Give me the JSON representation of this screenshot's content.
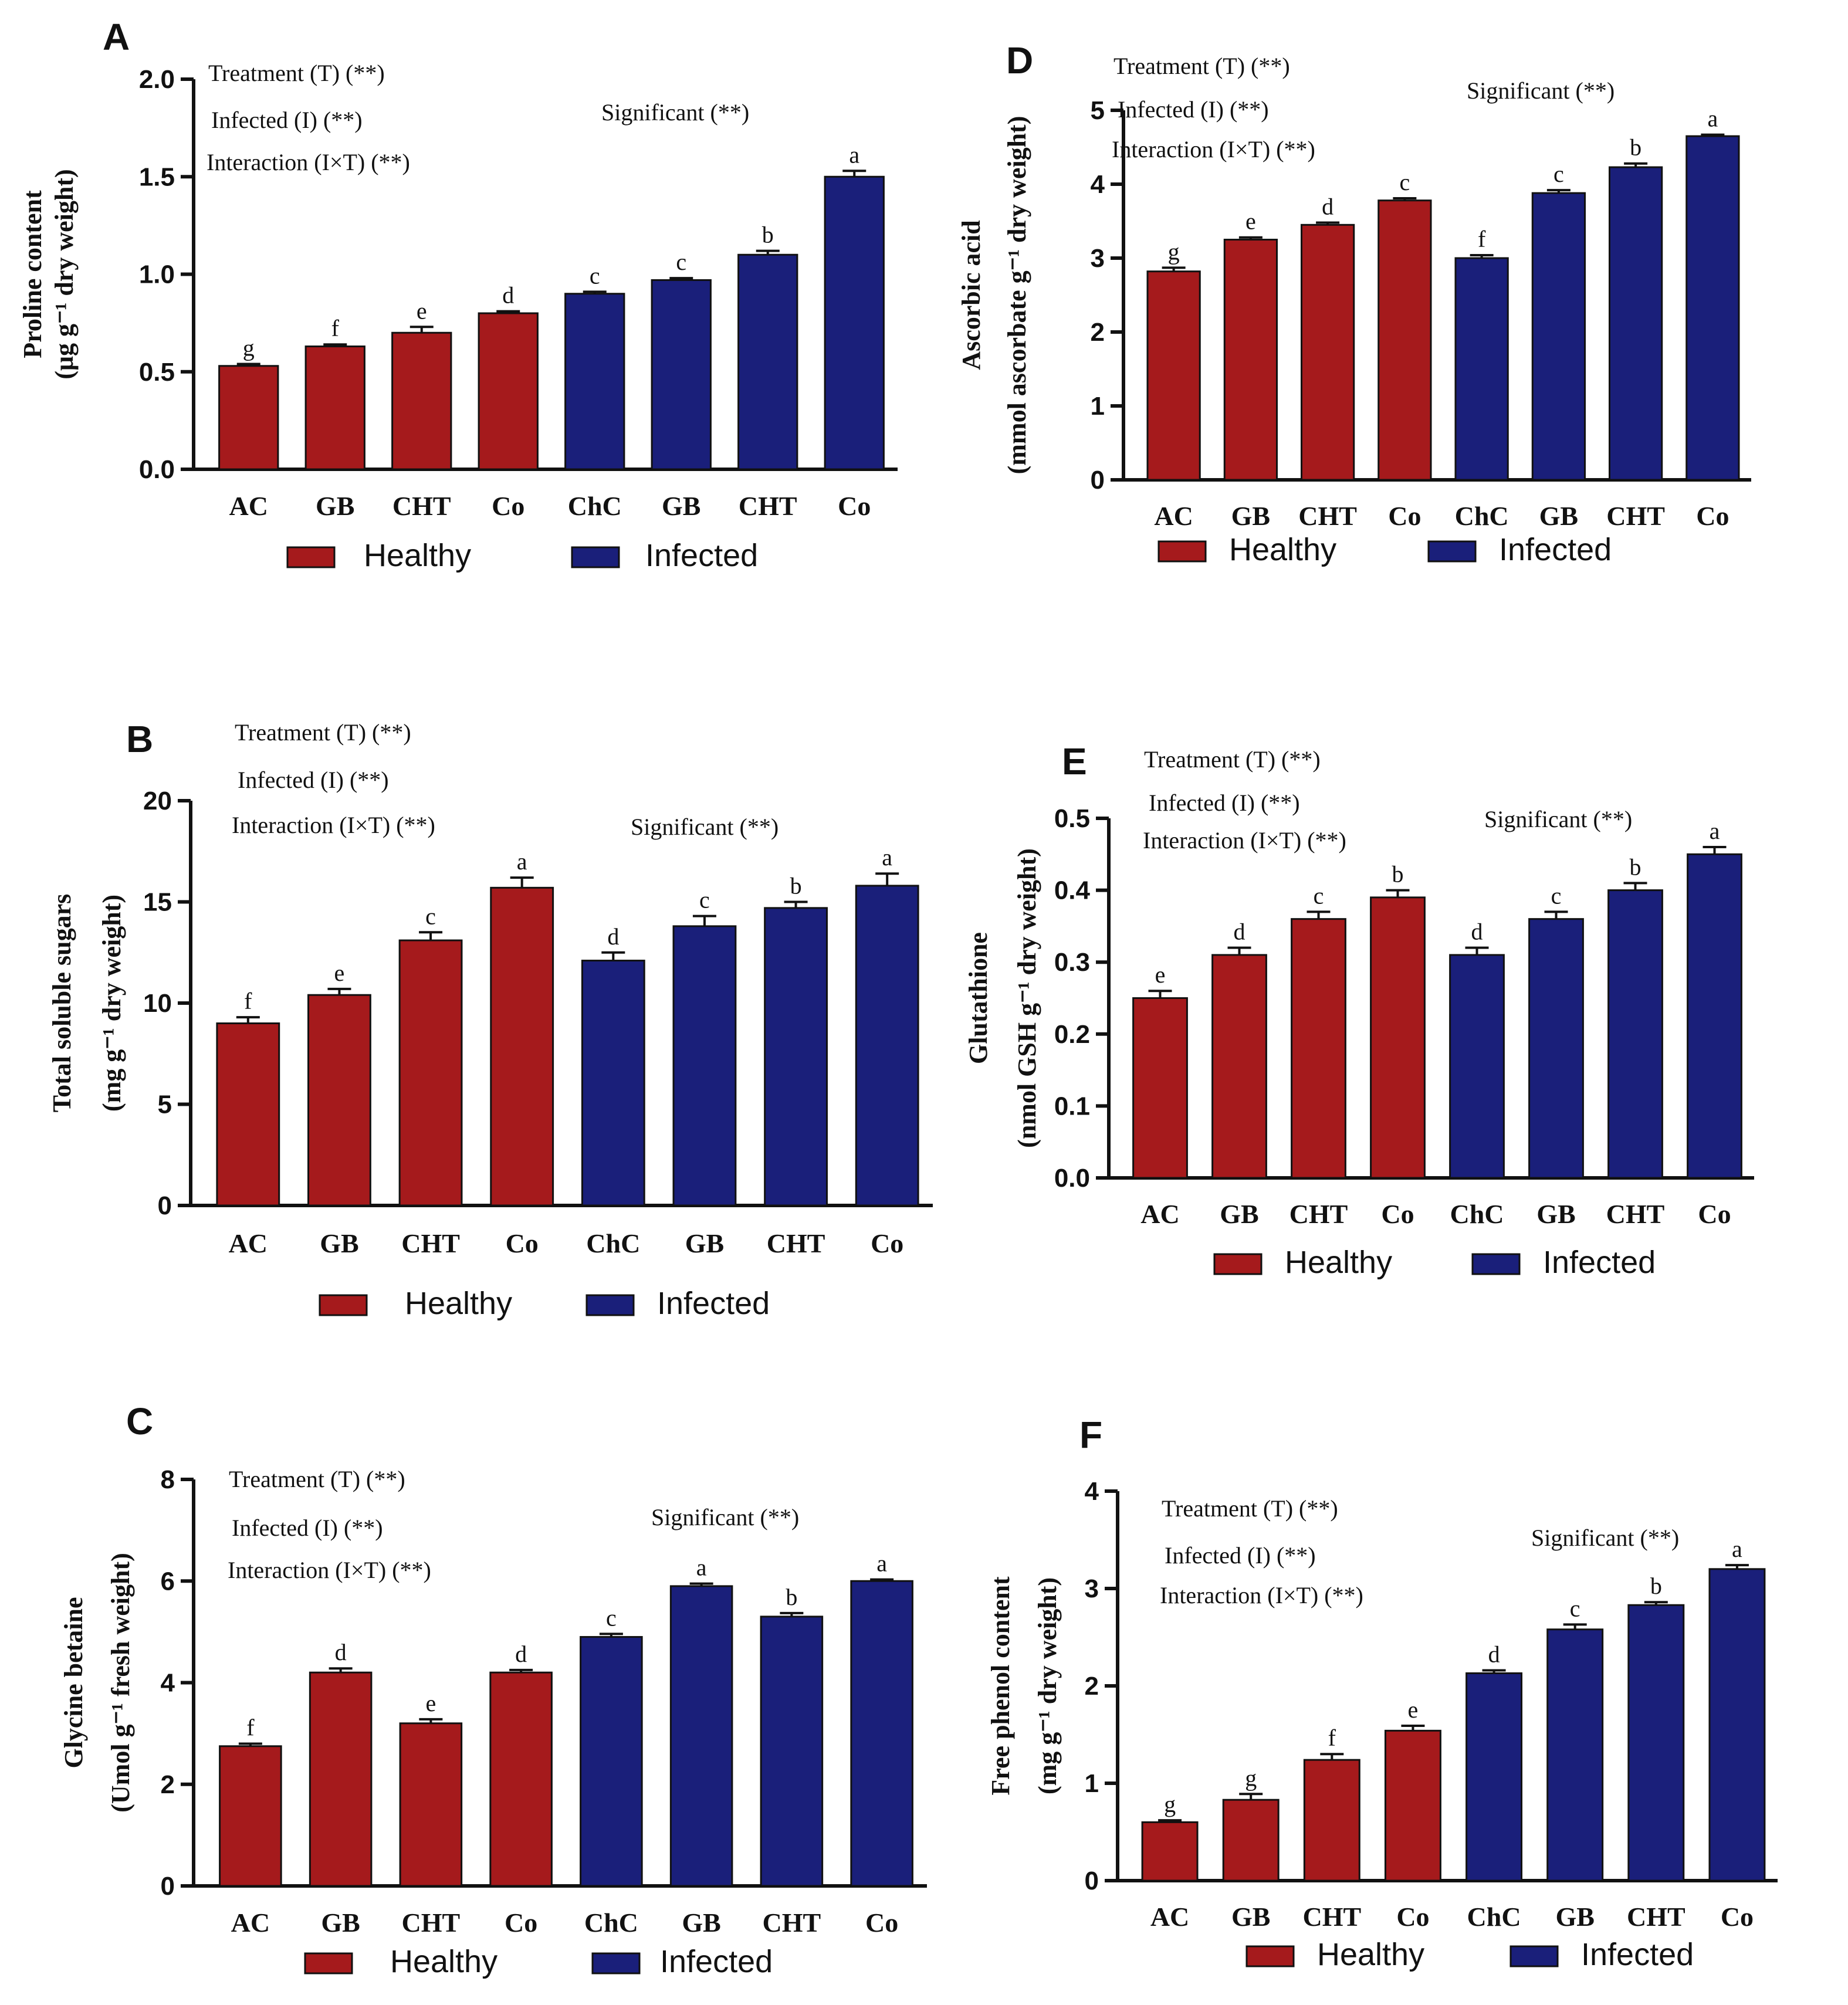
{
  "colors": {
    "healthy": "#a51a1c",
    "infected": "#1a1f7a"
  },
  "legend": {
    "healthy": "Healthy",
    "infected": "Infected"
  },
  "chart_data": [
    {
      "panel": "A",
      "type": "bar",
      "categories": [
        "AC",
        "GB",
        "CHT",
        "Co",
        "ChC",
        "GB",
        "CHT",
        "Co"
      ],
      "groups": [
        "healthy",
        "healthy",
        "healthy",
        "healthy",
        "infected",
        "infected",
        "infected",
        "infected"
      ],
      "values": [
        0.53,
        0.63,
        0.7,
        0.8,
        0.9,
        0.97,
        1.1,
        1.5
      ],
      "errors": [
        0.01,
        0.01,
        0.03,
        0.01,
        0.01,
        0.01,
        0.02,
        0.03
      ],
      "letters": [
        "g",
        "f",
        "e",
        "d",
        "c",
        "c",
        "b",
        "a"
      ],
      "ylabel": [
        "Proline content",
        "(μg g⁻¹ dry weight)"
      ],
      "ylim": [
        0,
        2.0
      ],
      "yticks": [
        "0.0",
        "0.5",
        "1.0",
        "1.5",
        "2.0"
      ],
      "annotations": [
        "Treatment (T) (**)",
        "Infected (I) (**)",
        "Interaction (I×T) (**)"
      ],
      "significance": "Significant (**)"
    },
    {
      "panel": "B",
      "type": "bar",
      "categories": [
        "AC",
        "GB",
        "CHT",
        "Co",
        "ChC",
        "GB",
        "CHT",
        "Co"
      ],
      "groups": [
        "healthy",
        "healthy",
        "healthy",
        "healthy",
        "infected",
        "infected",
        "infected",
        "infected"
      ],
      "values": [
        9.0,
        10.4,
        13.1,
        15.7,
        12.1,
        13.8,
        14.7,
        15.8
      ],
      "errors": [
        0.3,
        0.3,
        0.4,
        0.5,
        0.4,
        0.5,
        0.3,
        0.6
      ],
      "letters": [
        "f",
        "e",
        "c",
        "a",
        "d",
        "c",
        "b",
        "a"
      ],
      "ylabel": [
        "Total soluble sugars",
        "(mg g⁻¹ dry weight)"
      ],
      "ylim": [
        0,
        20
      ],
      "yticks": [
        "0",
        "5",
        "10",
        "15",
        "20"
      ],
      "annotations": [
        "Treatment (T) (**)",
        "Infected (I) (**)",
        "Interaction (I×T) (**)"
      ],
      "significance": "Significant (**)"
    },
    {
      "panel": "C",
      "type": "bar",
      "categories": [
        "AC",
        "GB",
        "CHT",
        "Co",
        "ChC",
        "GB",
        "CHT",
        "Co"
      ],
      "groups": [
        "healthy",
        "healthy",
        "healthy",
        "healthy",
        "infected",
        "infected",
        "infected",
        "infected"
      ],
      "values": [
        2.75,
        4.2,
        3.2,
        4.2,
        4.9,
        5.9,
        5.3,
        6.0
      ],
      "errors": [
        0.05,
        0.08,
        0.08,
        0.05,
        0.06,
        0.05,
        0.07,
        0.03
      ],
      "letters": [
        "f",
        "d",
        "e",
        "d",
        "c",
        "a",
        "b",
        "a"
      ],
      "ylabel": [
        "Glycine betaine",
        "(Umol g⁻¹ fresh weight)"
      ],
      "ylim": [
        0,
        8
      ],
      "yticks": [
        "0",
        "2",
        "4",
        "6",
        "8"
      ],
      "annotations": [
        "Treatment (T) (**)",
        "Infected (I) (**)",
        "Interaction (I×T) (**)"
      ],
      "significance": "Significant (**)"
    },
    {
      "panel": "D",
      "type": "bar",
      "categories": [
        "AC",
        "GB",
        "CHT",
        "Co",
        "ChC",
        "GB",
        "CHT",
        "Co"
      ],
      "groups": [
        "healthy",
        "healthy",
        "healthy",
        "healthy",
        "infected",
        "infected",
        "infected",
        "infected"
      ],
      "values": [
        2.82,
        3.25,
        3.45,
        3.78,
        3.0,
        3.88,
        4.23,
        4.65
      ],
      "errors": [
        0.05,
        0.03,
        0.03,
        0.03,
        0.04,
        0.04,
        0.05,
        0.02
      ],
      "letters": [
        "g",
        "e",
        "d",
        "c",
        "f",
        "c",
        "b",
        "a"
      ],
      "ylabel": [
        "Ascorbic acid",
        "(mmol ascorbate g⁻¹ dry weight)"
      ],
      "ylim": [
        0,
        5
      ],
      "yticks": [
        "0",
        "1",
        "2",
        "3",
        "4",
        "5"
      ],
      "annotations": [
        "Treatment (T) (**)",
        "Infected (I) (**)",
        "Interaction (I×T) (**)"
      ],
      "significance": "Significant (**)"
    },
    {
      "panel": "E",
      "type": "bar",
      "categories": [
        "AC",
        "GB",
        "CHT",
        "Co",
        "ChC",
        "GB",
        "CHT",
        "Co"
      ],
      "groups": [
        "healthy",
        "healthy",
        "healthy",
        "healthy",
        "infected",
        "infected",
        "infected",
        "infected"
      ],
      "values": [
        0.25,
        0.31,
        0.36,
        0.39,
        0.31,
        0.36,
        0.4,
        0.45
      ],
      "errors": [
        0.01,
        0.01,
        0.01,
        0.01,
        0.01,
        0.01,
        0.01,
        0.01
      ],
      "letters": [
        "e",
        "d",
        "c",
        "b",
        "d",
        "c",
        "b",
        "a"
      ],
      "ylabel": [
        "Glutathione",
        "(nmol GSH g⁻¹ dry weight)"
      ],
      "ylim": [
        0,
        0.5
      ],
      "yticks": [
        "0.0",
        "0.1",
        "0.2",
        "0.3",
        "0.4",
        "0.5"
      ],
      "annotations": [
        "Treatment (T) (**)",
        "Infected (I) (**)",
        "Interaction (I×T) (**)"
      ],
      "significance": "Significant (**)"
    },
    {
      "panel": "F",
      "type": "bar",
      "categories": [
        "AC",
        "GB",
        "CHT",
        "Co",
        "ChC",
        "GB",
        "CHT",
        "Co"
      ],
      "groups": [
        "healthy",
        "healthy",
        "healthy",
        "healthy",
        "infected",
        "infected",
        "infected",
        "infected"
      ],
      "values": [
        0.6,
        0.83,
        1.24,
        1.54,
        2.13,
        2.58,
        2.83,
        3.2
      ],
      "errors": [
        0.02,
        0.06,
        0.06,
        0.05,
        0.03,
        0.05,
        0.03,
        0.04
      ],
      "letters": [
        "g",
        "g",
        "f",
        "e",
        "d",
        "c",
        "b",
        "a"
      ],
      "ylabel": [
        "Free phenol content",
        "(mg g⁻¹ dry weight)"
      ],
      "ylim": [
        0,
        4
      ],
      "yticks": [
        "0",
        "1",
        "2",
        "3",
        "4"
      ],
      "annotations": [
        "Treatment (T) (**)",
        "Infected (I) (**)",
        "Interaction (I×T) (**)"
      ],
      "significance": "Significant (**)"
    }
  ]
}
